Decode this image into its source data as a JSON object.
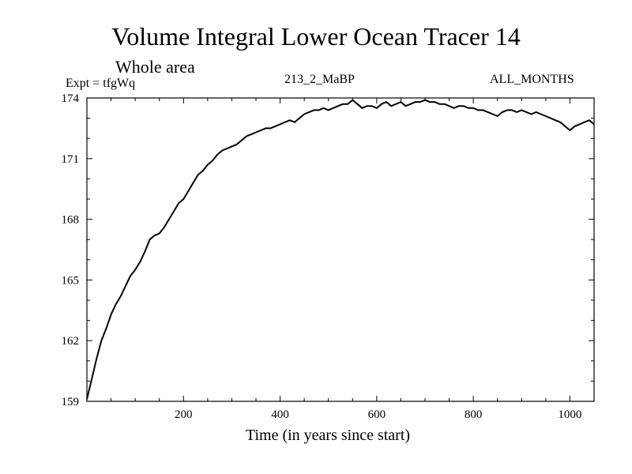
{
  "header": {
    "title": "Volume Integral Lower Ocean Tracer 14",
    "subtitle": "Whole area",
    "expt": "Expt = tfgWq",
    "center_label": "213_2_MaBP",
    "months_label": "ALL_MONTHS"
  },
  "chart_data": {
    "type": "line",
    "title": "Volume Integral Lower Ocean Tracer 14",
    "xlabel": "Time (in years since start)",
    "ylabel": "",
    "xlim": [
      0,
      1050
    ],
    "ylim": [
      159,
      174
    ],
    "x_ticks": [
      200,
      400,
      600,
      800,
      1000
    ],
    "y_ticks": [
      159,
      162,
      165,
      168,
      171,
      174
    ],
    "grid": false,
    "series": [
      {
        "name": "tfgWq",
        "x": [
          0,
          10,
          20,
          30,
          40,
          50,
          60,
          70,
          80,
          90,
          100,
          110,
          120,
          130,
          140,
          150,
          160,
          170,
          180,
          190,
          200,
          210,
          220,
          230,
          240,
          250,
          260,
          270,
          280,
          290,
          300,
          310,
          320,
          330,
          340,
          350,
          360,
          370,
          380,
          390,
          400,
          410,
          420,
          430,
          440,
          450,
          460,
          470,
          480,
          490,
          500,
          510,
          520,
          530,
          540,
          550,
          560,
          570,
          580,
          590,
          600,
          610,
          620,
          630,
          640,
          650,
          660,
          670,
          680,
          690,
          700,
          710,
          720,
          730,
          740,
          750,
          760,
          770,
          780,
          790,
          800,
          810,
          820,
          830,
          840,
          850,
          860,
          870,
          880,
          890,
          900,
          910,
          920,
          930,
          940,
          950,
          960,
          970,
          980,
          990,
          1000,
          1010,
          1020,
          1030,
          1040,
          1050
        ],
        "values": [
          159.1,
          160.1,
          161.1,
          162.0,
          162.6,
          163.3,
          163.8,
          164.2,
          164.7,
          165.2,
          165.5,
          165.9,
          166.4,
          167.0,
          167.2,
          167.3,
          167.6,
          168.0,
          168.4,
          168.8,
          169.0,
          169.4,
          169.8,
          170.2,
          170.4,
          170.7,
          170.9,
          171.2,
          171.4,
          171.5,
          171.6,
          171.7,
          171.9,
          172.1,
          172.2,
          172.3,
          172.4,
          172.5,
          172.5,
          172.6,
          172.7,
          172.8,
          172.9,
          172.8,
          173.0,
          173.2,
          173.3,
          173.4,
          173.4,
          173.5,
          173.4,
          173.5,
          173.6,
          173.7,
          173.7,
          173.9,
          173.7,
          173.5,
          173.6,
          173.6,
          173.5,
          173.7,
          173.8,
          173.6,
          173.7,
          173.8,
          173.6,
          173.7,
          173.8,
          173.8,
          173.9,
          173.8,
          173.8,
          173.7,
          173.7,
          173.6,
          173.5,
          173.6,
          173.6,
          173.5,
          173.5,
          173.4,
          173.4,
          173.3,
          173.2,
          173.1,
          173.3,
          173.4,
          173.4,
          173.3,
          173.4,
          173.3,
          173.2,
          173.3,
          173.2,
          173.1,
          173.0,
          172.9,
          172.8,
          172.6,
          172.4,
          172.6,
          172.7,
          172.8,
          172.9,
          172.7
        ]
      }
    ]
  }
}
